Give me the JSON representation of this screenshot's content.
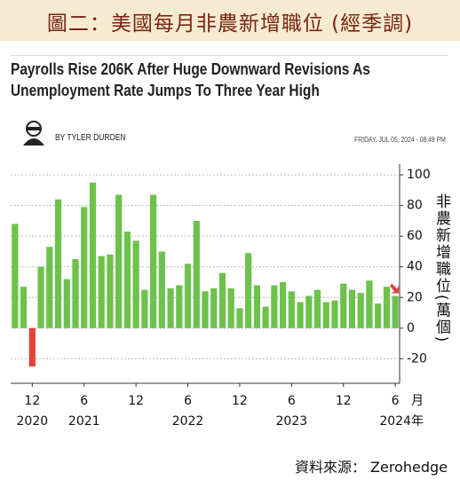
{
  "header": {
    "title": "圖二：美國每月非農新增職位 (經季調)"
  },
  "article": {
    "headline": [
      "Payrolls Rise 206K After Huge Downward Revisions As",
      "Unemployment Rate Jumps To Three Year High"
    ],
    "author": "BY TYLER DURDEN",
    "date": "FRIDAY, JUL 05, 2024 - 08:49 PM"
  },
  "source": "資料來源： Zerohedge",
  "chart_data": {
    "type": "bar",
    "y_label": "非農新增職位(萬個)",
    "x_label": "月",
    "x_group_label": "年",
    "categories": [
      null,
      null,
      "12",
      null,
      null,
      null,
      null,
      null,
      "6",
      null,
      null,
      null,
      null,
      null,
      "12",
      null,
      null,
      null,
      null,
      null,
      "6",
      null,
      null,
      null,
      null,
      null,
      "12",
      null,
      null,
      null,
      null,
      null,
      "6",
      null,
      null,
      null,
      null,
      null,
      "12",
      null,
      null,
      null,
      null,
      null,
      "6"
    ],
    "years": [
      null,
      null,
      "2020",
      null,
      null,
      null,
      null,
      null,
      "2021",
      null,
      null,
      null,
      null,
      null,
      null,
      null,
      null,
      null,
      null,
      null,
      "2022",
      null,
      null,
      null,
      null,
      null,
      null,
      null,
      null,
      null,
      null,
      null,
      "2023",
      null,
      null,
      null,
      null,
      null,
      null,
      null,
      null,
      null,
      null,
      null,
      "2024"
    ],
    "values": [
      68,
      27,
      -25,
      40,
      53,
      84,
      32,
      45,
      79,
      95,
      47,
      48,
      87,
      63,
      57,
      25,
      87,
      50,
      26,
      28,
      42,
      70,
      24,
      26,
      36,
      26,
      13,
      49,
      28,
      14,
      28,
      30,
      24,
      17,
      21,
      25,
      17,
      18,
      29,
      25,
      23,
      31,
      16,
      27,
      21
    ],
    "color": "#6cc24a",
    "negative_color": "#e5413b",
    "ylim": [
      -36,
      107
    ],
    "yticks": [
      -20,
      0,
      20,
      40,
      60,
      80,
      100
    ],
    "grid": true
  }
}
